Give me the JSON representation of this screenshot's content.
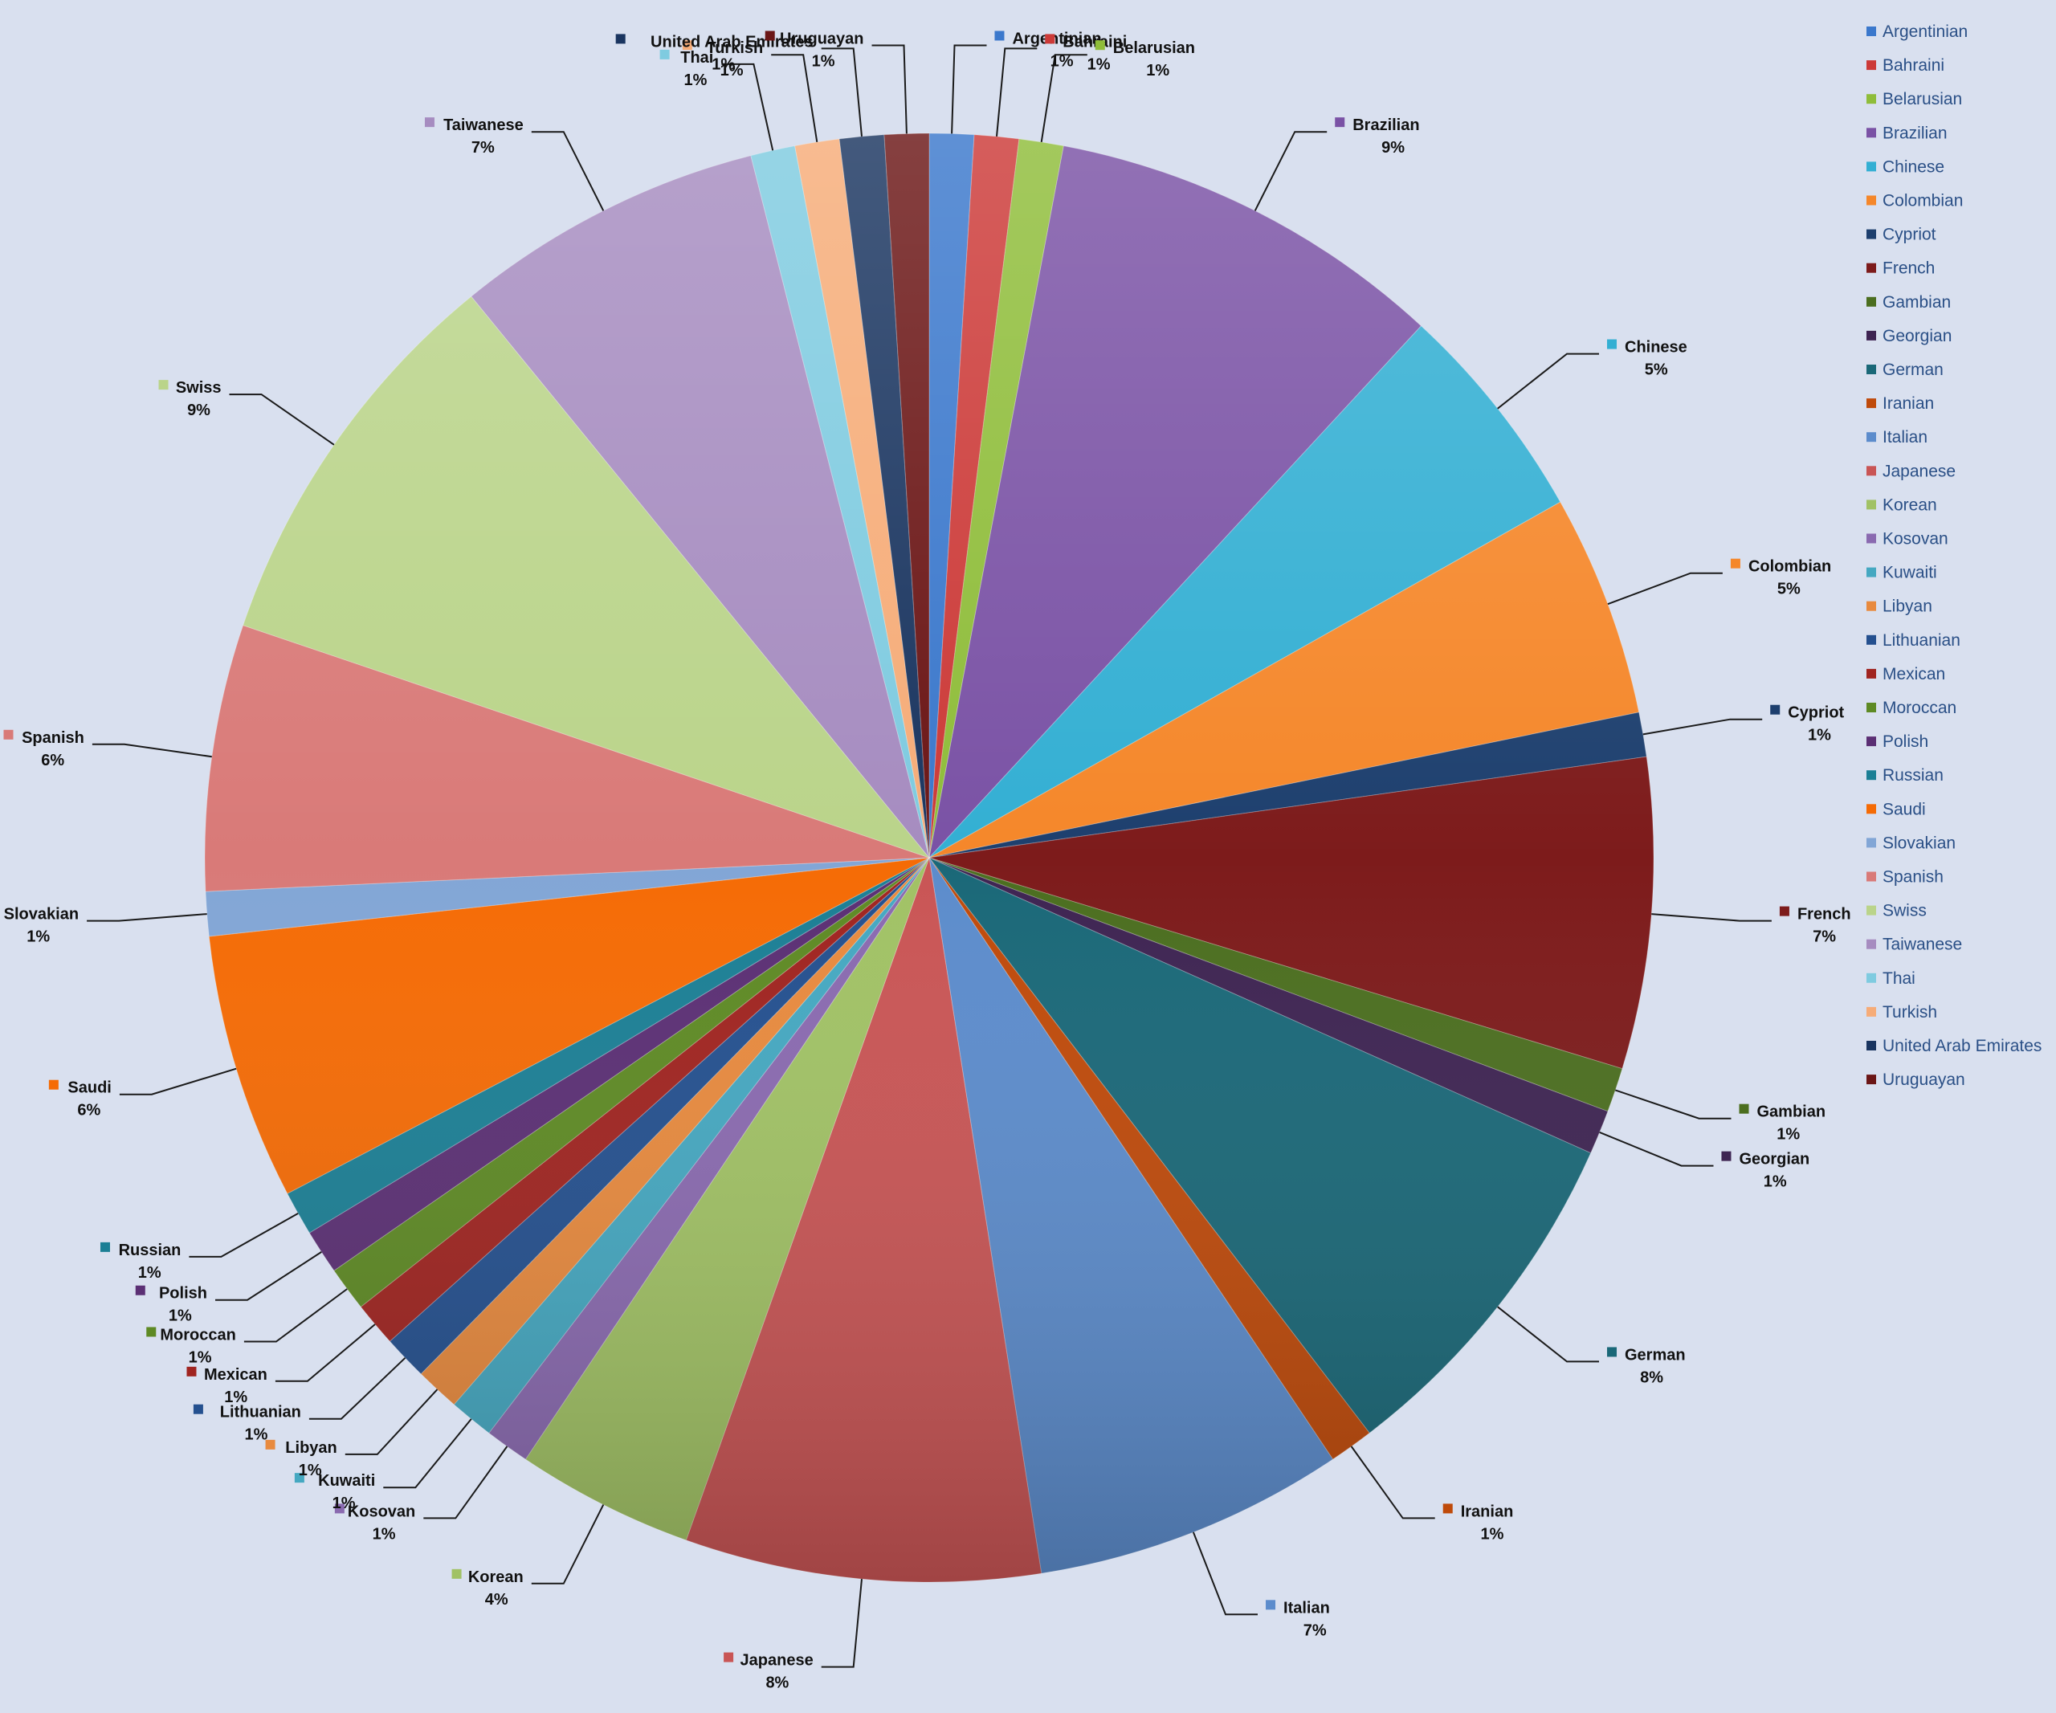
{
  "chart_data": {
    "type": "pie",
    "title": "",
    "legend_position": "right",
    "categories": [
      "Argentinian",
      "Bahraini",
      "Belarusian",
      "Brazilian",
      "Chinese",
      "Colombian",
      "Cypriot",
      "French",
      "Gambian",
      "Georgian",
      "German",
      "Iranian",
      "Italian",
      "Japanese",
      "Korean",
      "Kosovan",
      "Kuwaiti",
      "Libyan",
      "Lithuanian",
      "Mexican",
      "Moroccan",
      "Polish",
      "Russian",
      "Saudi",
      "Slovakian",
      "Spanish",
      "Swiss",
      "Taiwanese",
      "Thai",
      "Turkish",
      "United Arab Emirates",
      "Uruguayan"
    ],
    "values": [
      1,
      1,
      1,
      9,
      5,
      5,
      1,
      7,
      1,
      1,
      8,
      1,
      7,
      8,
      4,
      1,
      1,
      1,
      1,
      1,
      1,
      1,
      1,
      6,
      1,
      6,
      9,
      7,
      1,
      1,
      1,
      1
    ],
    "percent_labels": [
      "1%",
      "1%",
      "1%",
      "9%",
      "5%",
      "5%",
      "1%",
      "7%",
      "1%",
      "1%",
      "8%",
      "1%",
      "7%",
      "8%",
      "4%",
      "1%",
      "1%",
      "1%",
      "1%",
      "1%",
      "1%",
      "1%",
      "1%",
      "6%",
      "1%",
      "6%",
      "9%",
      "7%",
      "1%",
      "1%",
      "1%",
      "1%"
    ],
    "colors": [
      "#3b78cc",
      "#cc3a38",
      "#8fbd3a",
      "#7a52a5",
      "#33afd3",
      "#f5872a",
      "#1d3f6e",
      "#7d1b1b",
      "#4b6e1f",
      "#3e2452",
      "#1a6878",
      "#bf4a0a",
      "#5c8ccc",
      "#c95555",
      "#a1c265",
      "#8a6ab0",
      "#45a8c1",
      "#e88a3e",
      "#24508f",
      "#a02420",
      "#5e8a24",
      "#5b2f74",
      "#1b7f95",
      "#f56b05",
      "#82a6d6",
      "#d97a78",
      "#bad48a",
      "#a68cc0",
      "#7fcbe0",
      "#f6ac78",
      "#1a3560",
      "#6b1616"
    ]
  }
}
